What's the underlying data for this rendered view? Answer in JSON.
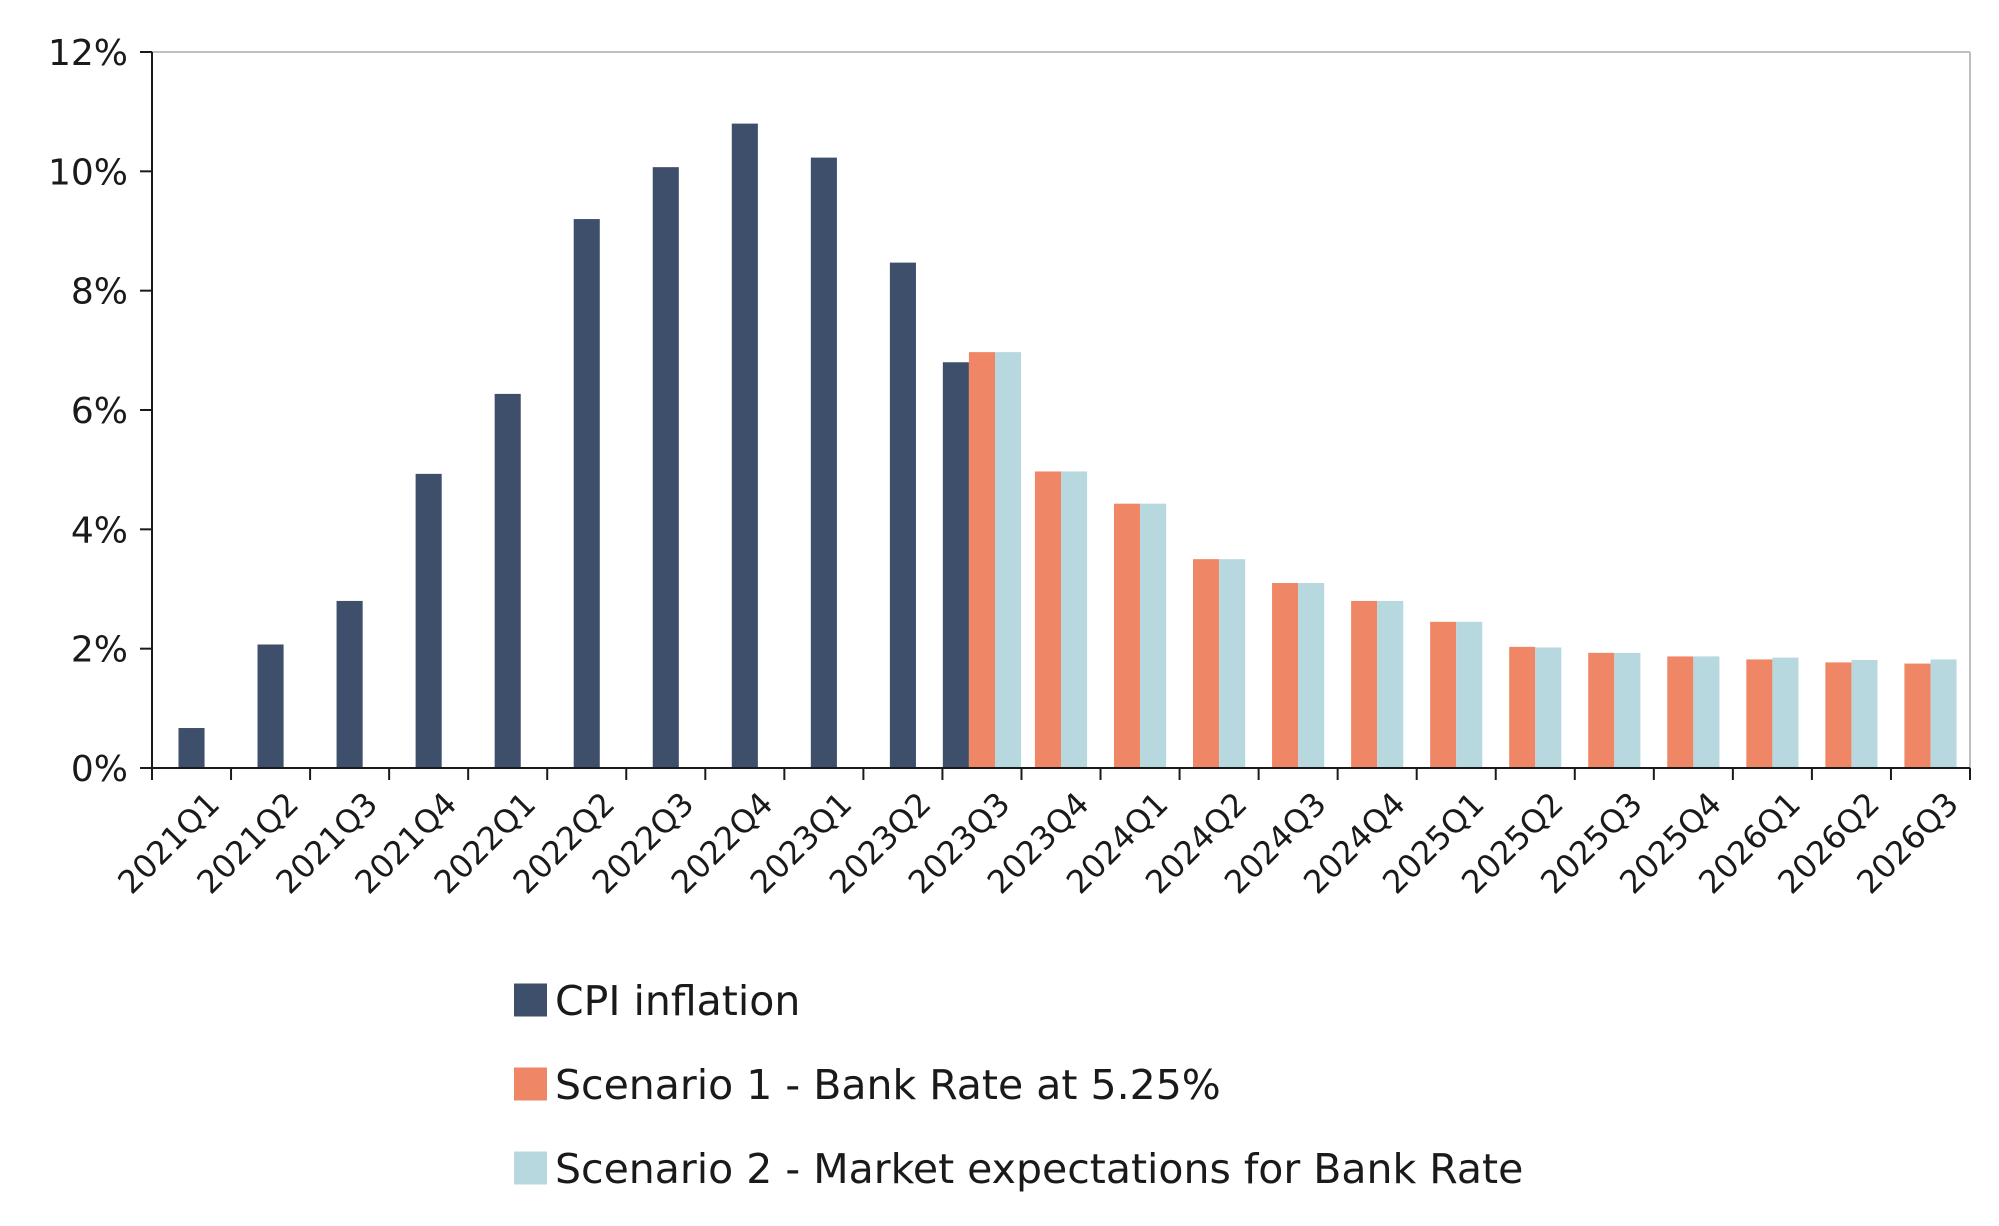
{
  "chart_data": {
    "type": "bar",
    "title": "",
    "xlabel": "",
    "ylabel": "",
    "ylim": [
      0,
      12
    ],
    "yticks": [
      0,
      2,
      4,
      6,
      8,
      10,
      12
    ],
    "ytick_format": "%",
    "grid": false,
    "legend_position": "bottom",
    "categories": [
      "2021Q1",
      "2021Q2",
      "2021Q3",
      "2021Q4",
      "2022Q1",
      "2022Q2",
      "2022Q3",
      "2022Q4",
      "2023Q1",
      "2023Q2",
      "2023Q3",
      "2023Q4",
      "2024Q1",
      "2024Q2",
      "2024Q3",
      "2024Q4",
      "2025Q1",
      "2025Q2",
      "2025Q3",
      "2025Q4",
      "2026Q1",
      "2026Q2",
      "2026Q3"
    ],
    "series": [
      {
        "name": "CPI inflation",
        "color": "#3d4f6b",
        "values": [
          0.67,
          2.07,
          2.8,
          4.93,
          6.27,
          9.2,
          10.07,
          10.8,
          10.23,
          8.47,
          6.8,
          null,
          null,
          null,
          null,
          null,
          null,
          null,
          null,
          null,
          null,
          null,
          null
        ]
      },
      {
        "name": "Scenario 1 - Bank Rate at 5.25%",
        "color": "#ef8766",
        "values": [
          null,
          null,
          null,
          null,
          null,
          null,
          null,
          null,
          null,
          null,
          6.97,
          4.97,
          4.43,
          3.5,
          3.1,
          2.8,
          2.45,
          2.03,
          1.93,
          1.87,
          1.82,
          1.77,
          1.75
        ]
      },
      {
        "name": "Scenario 2 - Market expectations for Bank Rate",
        "color": "#b8d8e0",
        "values": [
          null,
          null,
          null,
          null,
          null,
          null,
          null,
          null,
          null,
          null,
          6.97,
          4.97,
          4.43,
          3.5,
          3.1,
          2.8,
          2.45,
          2.02,
          1.93,
          1.87,
          1.85,
          1.81,
          1.82
        ]
      }
    ]
  }
}
